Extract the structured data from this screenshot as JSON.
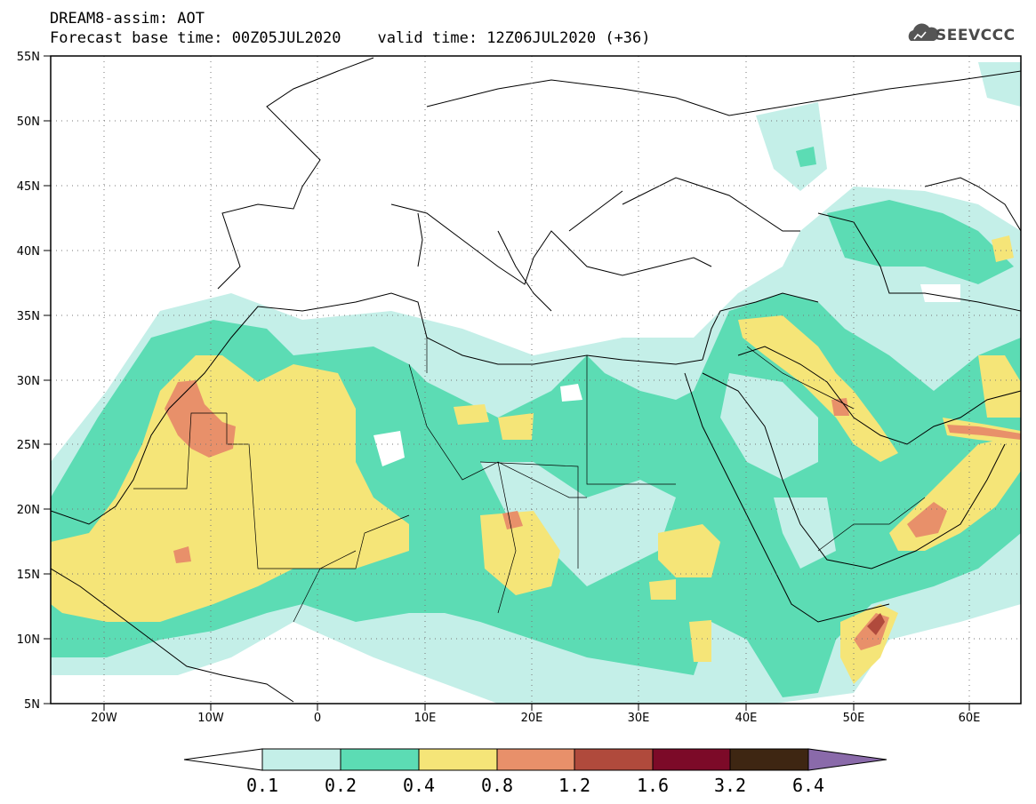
{
  "header": {
    "title": "DREAM8-assim: AOT",
    "base_time_label": "Forecast base time: 00Z05JUL2020",
    "valid_time_label": "valid time: 12Z06JUL2020 (+36)"
  },
  "logo": {
    "text": "SEEVCCC",
    "icon": "cloud-icon"
  },
  "map": {
    "lon_range": [
      -25,
      65
    ],
    "lat_range": [
      5,
      55
    ],
    "lon_ticks": [
      "20W",
      "10W",
      "0",
      "10E",
      "20E",
      "30E",
      "40E",
      "50E",
      "60E"
    ],
    "lat_ticks": [
      "55N",
      "50N",
      "45N",
      "40N",
      "35N",
      "30N",
      "25N",
      "20N",
      "15N",
      "10N",
      "5N"
    ],
    "grid": "dotted"
  },
  "colorbar": {
    "labels": [
      "0.1",
      "0.2",
      "0.4",
      "0.8",
      "1.2",
      "1.6",
      "3.2",
      "6.4"
    ],
    "colors": [
      "#ffffff",
      "#c4efe8",
      "#5cdcb4",
      "#f5e578",
      "#e8906a",
      "#b04a3c",
      "#7c0a28",
      "#3e2612",
      "#8a6aaa"
    ]
  }
}
